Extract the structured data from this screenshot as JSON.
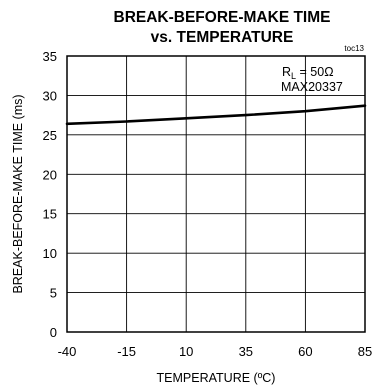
{
  "chart_data": {
    "type": "line",
    "title_line1": "BREAK-BEFORE-MAKE TIME",
    "title_line2": "vs. TEMPERATURE",
    "xlabel": "TEMPERATURE (ºC)",
    "ylabel": "BREAK-BEFORE-MAKE TIME (ms)",
    "xlim": [
      -40,
      85
    ],
    "ylim": [
      0,
      35
    ],
    "xticks": [
      -40,
      -15,
      10,
      35,
      60,
      85
    ],
    "yticks": [
      0,
      5,
      10,
      15,
      20,
      25,
      30,
      35
    ],
    "grid": true,
    "tag": "toc13",
    "annotation_r": "R",
    "annotation_sub": "L",
    "annotation_rest": " = 50Ω",
    "annotation_part": "MAX20337",
    "series": [
      {
        "color": "#000000",
        "x": [
          -40,
          -15,
          10,
          35,
          60,
          85
        ],
        "y": [
          26.4,
          26.7,
          27.1,
          27.5,
          28.0,
          28.7
        ]
      }
    ]
  }
}
